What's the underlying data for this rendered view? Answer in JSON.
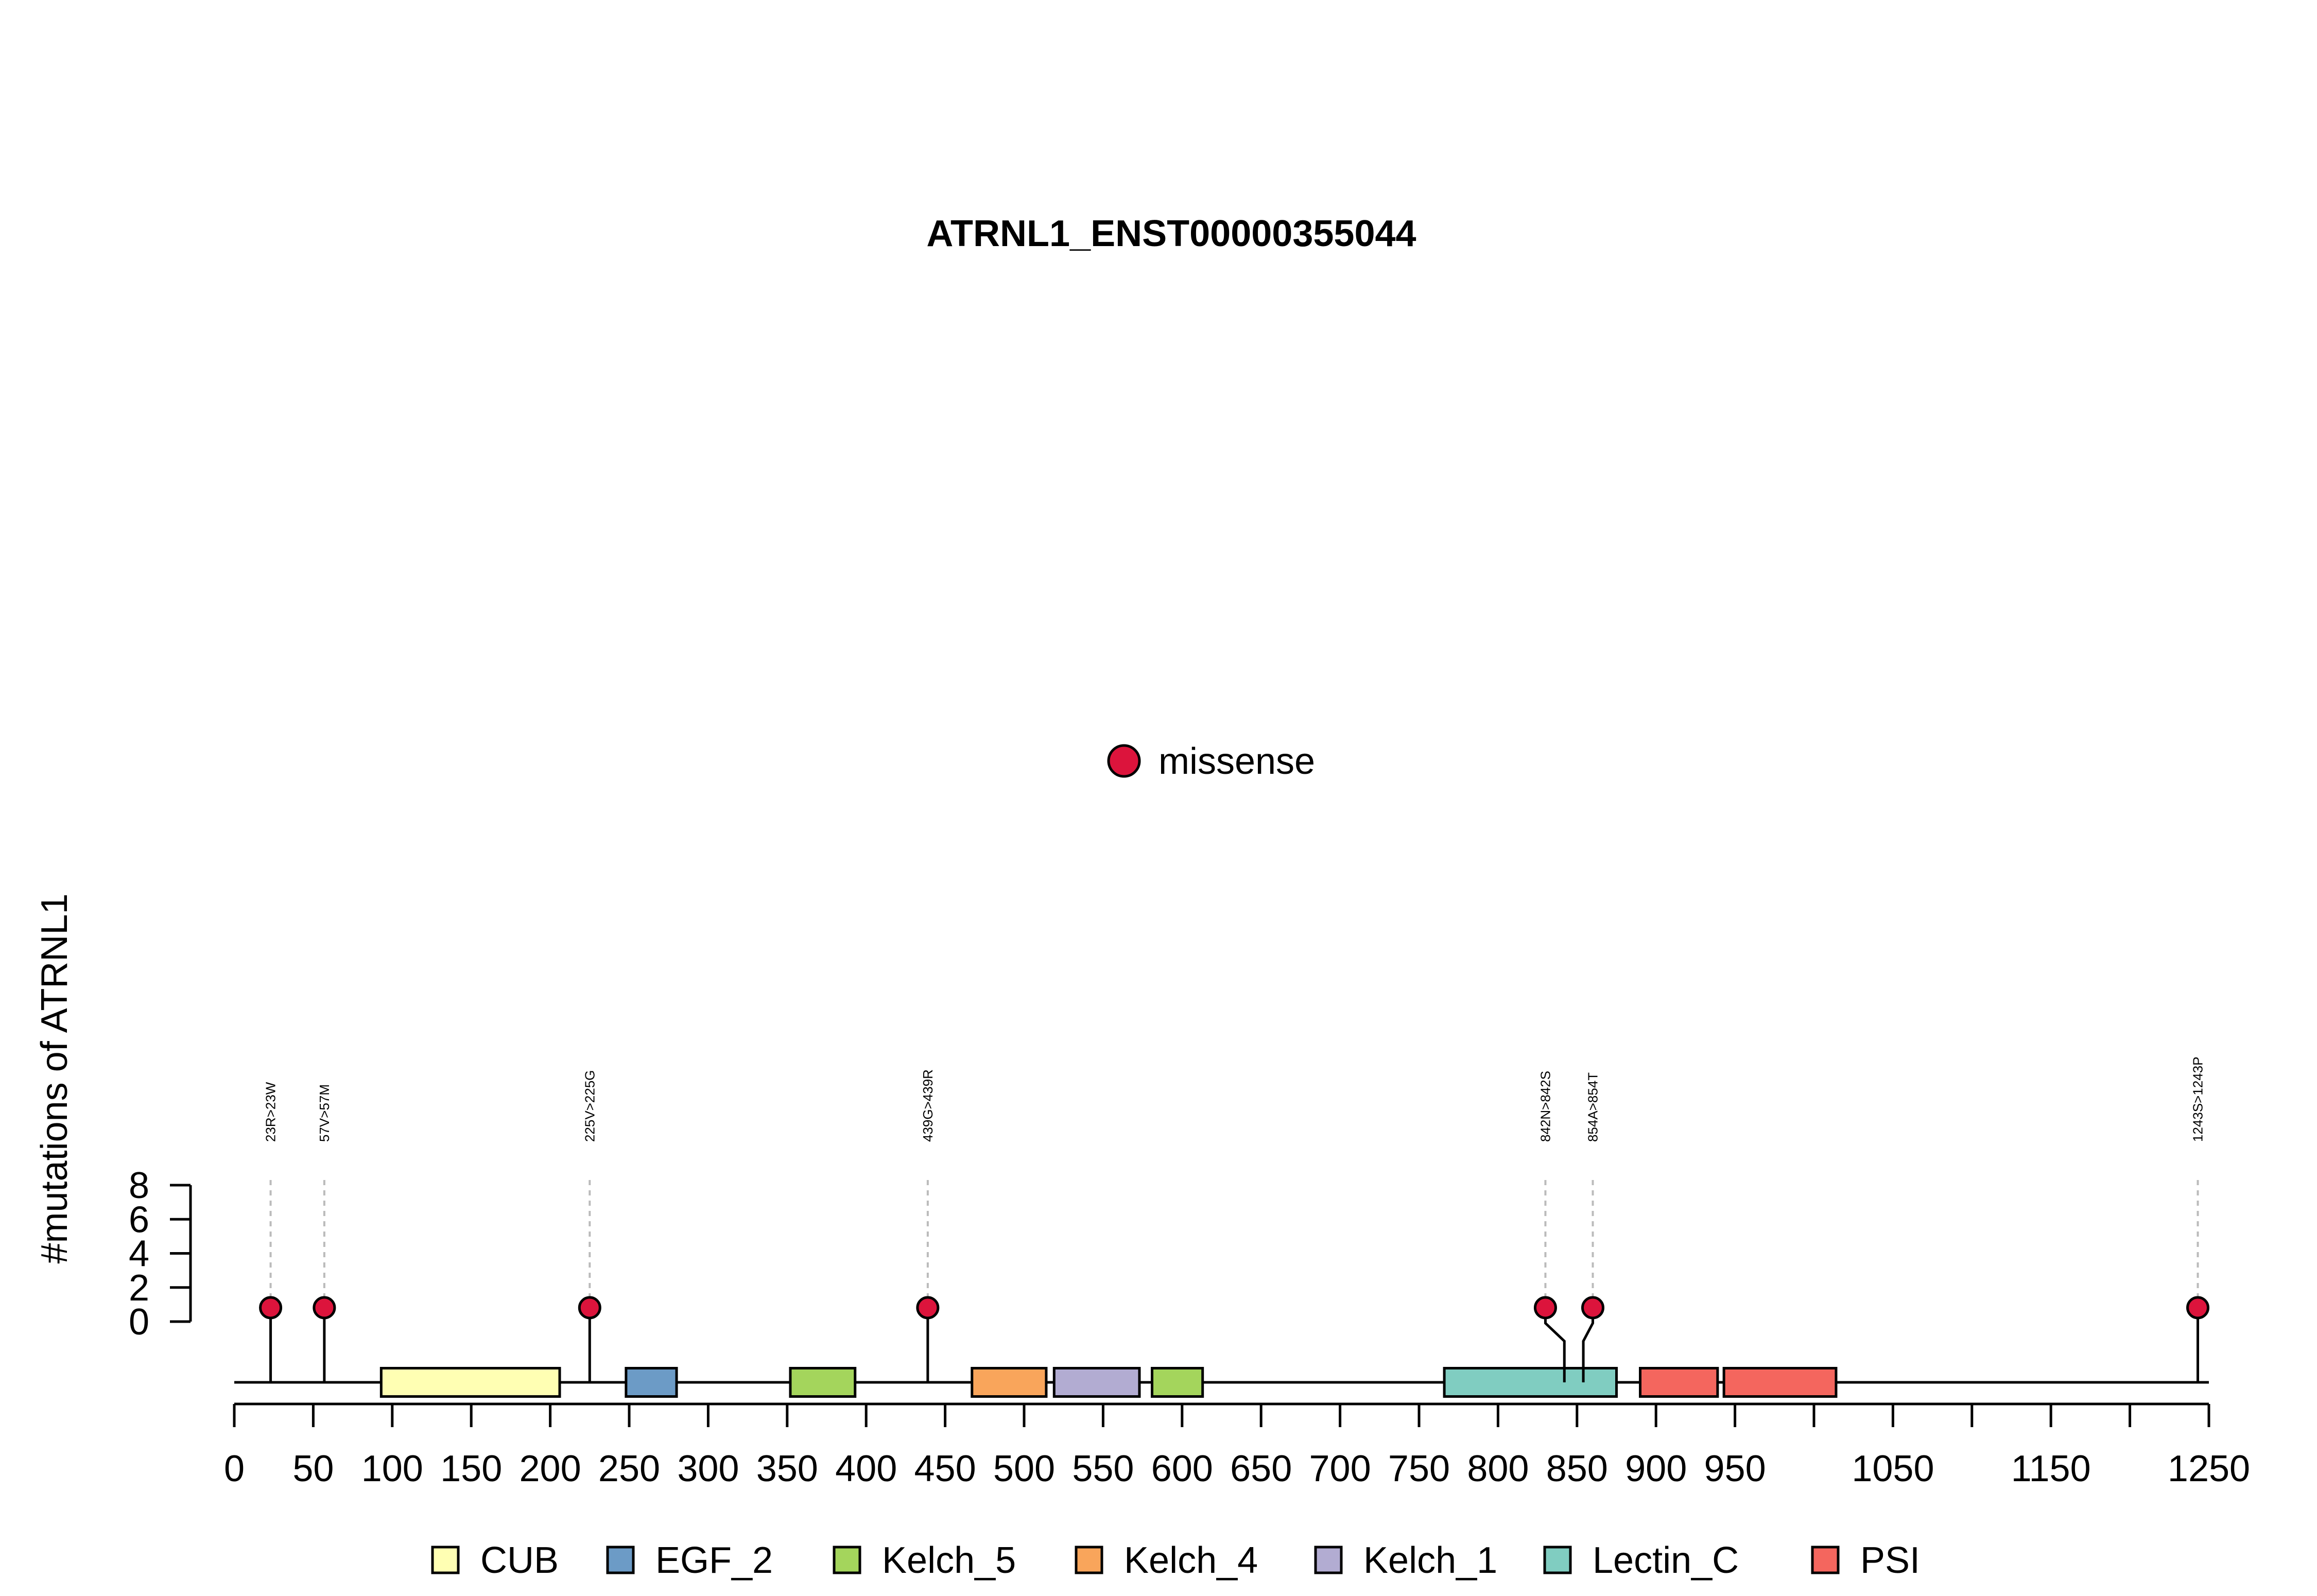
{
  "chart_data": {
    "type": "lollipop",
    "title": "ATRNL1_ENST00000355044",
    "ylabel": "#mutations of ATRNL1",
    "xlim": [
      0,
      1250
    ],
    "ylim": [
      0,
      8
    ],
    "x_ticks": [
      0,
      50,
      100,
      150,
      200,
      250,
      300,
      350,
      400,
      450,
      500,
      550,
      600,
      650,
      700,
      750,
      800,
      850,
      900,
      950,
      1000,
      1050,
      1100,
      1150,
      1200,
      1250
    ],
    "x_tick_labels": [
      "0",
      "50",
      "100",
      "150",
      "200",
      "250",
      "300",
      "350",
      "400",
      "450",
      "500",
      "550",
      "600",
      "650",
      "700",
      "750",
      "800",
      "850",
      "900",
      "950",
      "",
      "1050",
      "",
      "1150",
      "",
      "1250"
    ],
    "y_ticks": [
      0,
      2,
      4,
      6,
      8
    ],
    "y_tick_labels": [
      "0",
      "2",
      "4",
      "6",
      "8"
    ],
    "mutation_legend": [
      {
        "label": "missense",
        "color": "#DC143C"
      }
    ],
    "mutations": [
      {
        "position": 23,
        "label": "23R>23W",
        "count": 1,
        "type": "missense"
      },
      {
        "position": 57,
        "label": "57V>57M",
        "count": 1,
        "type": "missense"
      },
      {
        "position": 225,
        "label": "225V>225G",
        "count": 1,
        "type": "missense"
      },
      {
        "position": 439,
        "label": "439G>439R",
        "count": 1,
        "type": "missense"
      },
      {
        "position": 842,
        "label": "842N>842S",
        "count": 1,
        "type": "missense"
      },
      {
        "position": 854,
        "label": "854A>854T",
        "count": 1,
        "type": "missense"
      },
      {
        "position": 1243,
        "label": "1243S>1243P",
        "count": 1,
        "type": "missense"
      }
    ],
    "domains": [
      {
        "name": "CUB",
        "start": 93,
        "end": 206
      },
      {
        "name": "EGF_2",
        "start": 248,
        "end": 280
      },
      {
        "name": "Kelch_5",
        "start": 352,
        "end": 393
      },
      {
        "name": "Kelch_4",
        "start": 467,
        "end": 514
      },
      {
        "name": "Kelch_1",
        "start": 519,
        "end": 573
      },
      {
        "name": "Kelch_5",
        "start": 581,
        "end": 613
      },
      {
        "name": "Lectin_C",
        "start": 766,
        "end": 875
      },
      {
        "name": "PSI",
        "start": 890,
        "end": 939
      },
      {
        "name": "PSI",
        "start": 943,
        "end": 1014
      }
    ],
    "domain_legend": [
      {
        "name": "CUB",
        "color": "#FFFFB3"
      },
      {
        "name": "EGF_2",
        "color": "#6C9BC6"
      },
      {
        "name": "Kelch_5",
        "color": "#A4D55C"
      },
      {
        "name": "Kelch_4",
        "color": "#F9A55B"
      },
      {
        "name": "Kelch_1",
        "color": "#B2ACD2"
      },
      {
        "name": "Lectin_C",
        "color": "#80CDC1"
      },
      {
        "name": "PSI",
        "color": "#F4665E"
      }
    ],
    "grid": false
  }
}
